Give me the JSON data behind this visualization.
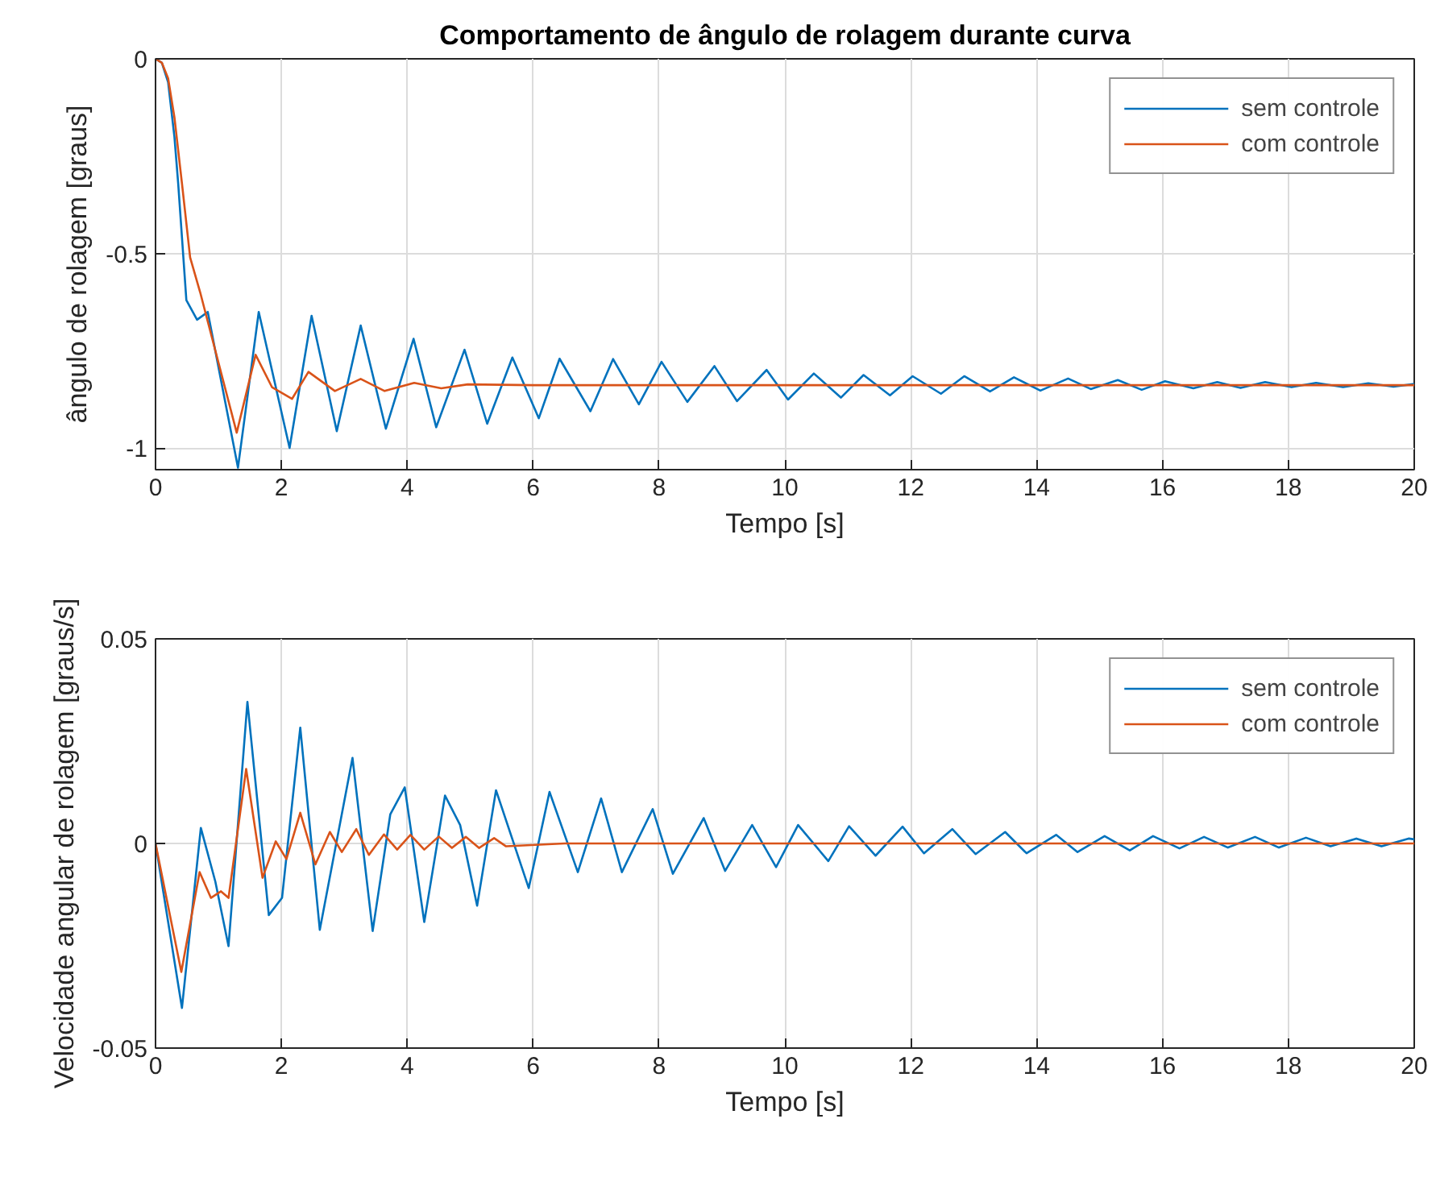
{
  "chart_data": [
    {
      "type": "line",
      "title": "Comportamento de ângulo de rolagem durante curva",
      "xlabel": "Tempo [s]",
      "ylabel": "ângulo de rolagem [graus]",
      "xlim": [
        0,
        20
      ],
      "ylim": [
        -1.055,
        0
      ],
      "xticks": [
        0,
        2,
        4,
        6,
        8,
        10,
        12,
        14,
        16,
        18,
        20
      ],
      "yticks": [
        -1,
        -0.5,
        0
      ],
      "grid": true,
      "legend": "top right",
      "series": [
        {
          "name": "sem controle",
          "color": "#0072bd",
          "x": [
            0,
            0.1,
            0.2,
            0.3,
            0.36,
            0.49,
            0.66,
            0.83,
            1.31,
            1.64,
            2.13,
            2.48,
            2.88,
            3.26,
            3.66,
            4.1,
            4.46,
            4.91,
            5.27,
            5.67,
            6.09,
            6.42,
            6.91,
            7.27,
            7.68,
            8.04,
            8.45,
            8.88,
            9.24,
            9.71,
            10.05,
            10.46,
            10.89,
            11.25,
            11.67,
            12.03,
            12.48,
            12.85,
            13.26,
            13.64,
            14.06,
            14.5,
            14.86,
            15.29,
            15.67,
            16.04,
            16.49,
            16.87,
            17.24,
            17.63,
            18.05,
            18.44,
            18.87,
            19.27,
            19.67,
            20
          ],
          "values": [
            0,
            -0.01,
            -0.06,
            -0.2,
            -0.32,
            -0.62,
            -0.67,
            -0.65,
            -1.05,
            -0.65,
            -0.999,
            -0.66,
            -0.956,
            -0.685,
            -0.95,
            -0.719,
            -0.946,
            -0.747,
            -0.937,
            -0.767,
            -0.923,
            -0.77,
            -0.905,
            -0.771,
            -0.887,
            -0.778,
            -0.881,
            -0.789,
            -0.879,
            -0.799,
            -0.875,
            -0.808,
            -0.87,
            -0.812,
            -0.864,
            -0.815,
            -0.86,
            -0.815,
            -0.854,
            -0.818,
            -0.852,
            -0.821,
            -0.848,
            -0.825,
            -0.85,
            -0.828,
            -0.846,
            -0.83,
            -0.845,
            -0.83,
            -0.843,
            -0.832,
            -0.843,
            -0.833,
            -0.842,
            -0.835
          ]
        },
        {
          "name": "com controle",
          "color": "#d95319",
          "x": [
            0,
            0.1,
            0.2,
            0.3,
            0.42,
            0.55,
            0.71,
            1.29,
            1.59,
            1.85,
            2.17,
            2.43,
            2.85,
            3.26,
            3.64,
            4.11,
            4.54,
            4.96,
            6,
            20
          ],
          "values": [
            0,
            -0.01,
            -0.05,
            -0.15,
            -0.32,
            -0.51,
            -0.6,
            -0.96,
            -0.76,
            -0.843,
            -0.873,
            -0.804,
            -0.853,
            -0.822,
            -0.853,
            -0.832,
            -0.846,
            -0.836,
            -0.838,
            -0.838
          ]
        }
      ]
    },
    {
      "type": "line",
      "xlabel": "Tempo [s]",
      "ylabel": "Velocidade angular de rolagem [graus/s]",
      "xlim": [
        0,
        20
      ],
      "ylim": [
        -0.05,
        0.05
      ],
      "xticks": [
        0,
        2,
        4,
        6,
        8,
        10,
        12,
        14,
        16,
        18,
        20
      ],
      "yticks": [
        -0.05,
        0,
        0.05
      ],
      "grid": true,
      "legend": "top right",
      "series": [
        {
          "name": "sem controle",
          "color": "#0072bd",
          "x": [
            0,
            0.42,
            0.72,
            0.95,
            1.16,
            1.46,
            1.8,
            2.01,
            2.3,
            2.61,
            3.13,
            3.45,
            3.73,
            3.96,
            4.27,
            4.6,
            4.84,
            5.11,
            5.41,
            5.93,
            6.26,
            6.71,
            7.08,
            7.41,
            7.9,
            8.22,
            8.71,
            9.05,
            9.48,
            9.86,
            10.21,
            10.69,
            11.02,
            11.44,
            11.87,
            12.21,
            12.66,
            13.03,
            13.5,
            13.84,
            14.31,
            14.65,
            15.08,
            15.48,
            15.85,
            16.27,
            16.66,
            17.04,
            17.47,
            17.85,
            18.28,
            18.67,
            19.08,
            19.48,
            19.91,
            20
          ],
          "values": [
            0,
            -0.0402,
            0.0038,
            -0.0093,
            -0.0251,
            0.0346,
            -0.0175,
            -0.0133,
            0.0283,
            -0.0211,
            0.0209,
            -0.0214,
            0.0071,
            0.0137,
            -0.0192,
            0.0117,
            0.0045,
            -0.0152,
            0.013,
            -0.0109,
            0.0126,
            -0.007,
            0.011,
            -0.007,
            0.0084,
            -0.0074,
            0.0062,
            -0.0067,
            0.0045,
            -0.0058,
            0.0045,
            -0.0043,
            0.0042,
            -0.003,
            0.0041,
            -0.0024,
            0.0035,
            -0.0026,
            0.0028,
            -0.0024,
            0.0021,
            -0.0021,
            0.0018,
            -0.0017,
            0.0018,
            -0.0012,
            0.0016,
            -0.001,
            0.0016,
            -0.001,
            0.0014,
            -0.0007,
            0.0012,
            -0.0007,
            0.0012,
            0.001
          ]
        },
        {
          "name": "com controle",
          "color": "#d95319",
          "x": [
            0,
            0.41,
            0.7,
            0.88,
            1.04,
            1.16,
            1.44,
            1.7,
            1.91,
            2.08,
            2.3,
            2.54,
            2.77,
            2.96,
            3.19,
            3.39,
            3.63,
            3.84,
            4.05,
            4.27,
            4.5,
            4.71,
            4.93,
            5.14,
            5.38,
            5.57,
            6.5,
            20
          ],
          "values": [
            0,
            -0.0314,
            -0.007,
            -0.0133,
            -0.0117,
            -0.0133,
            0.0182,
            -0.0084,
            0.0005,
            -0.0038,
            0.0075,
            -0.0051,
            0.0028,
            -0.0021,
            0.0035,
            -0.0028,
            0.0022,
            -0.0015,
            0.0021,
            -0.0015,
            0.0017,
            -0.0011,
            0.0016,
            -0.0011,
            0.0013,
            -0.0007,
            0,
            0
          ]
        }
      ]
    }
  ]
}
